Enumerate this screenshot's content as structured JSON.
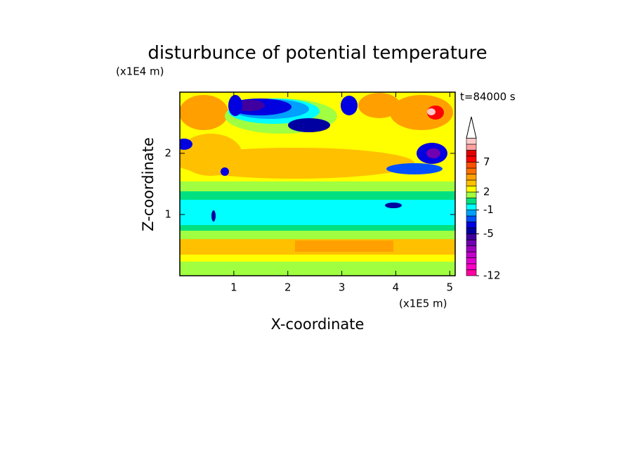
{
  "chart_data": {
    "type": "contour",
    "title": "disturbunce of potential temperature",
    "x_label": "X-coordinate",
    "y_label": "Z-coordinate",
    "x_unit": "(x1E5 m)",
    "y_unit": "(x1E4 m)",
    "annotation": "t=84000 s",
    "xlim": [
      0,
      5.1
    ],
    "ylim": [
      0,
      3
    ],
    "xticks": [
      1,
      2,
      3,
      4,
      5
    ],
    "yticks": [
      1,
      2
    ],
    "colorbar": {
      "levels": [
        -12,
        -11,
        -10,
        -9,
        -8,
        -7,
        -6,
        -5,
        -4,
        -3,
        -2,
        -1,
        0,
        1,
        2,
        3,
        4,
        5,
        6,
        7,
        8,
        9,
        10,
        11
      ],
      "colors": [
        "#ff00a0",
        "#ff00c8",
        "#e000d0",
        "#c000c8",
        "#a000c0",
        "#7000b0",
        "#4000a0",
        "#0000a0",
        "#0000e0",
        "#0050ff",
        "#00a0ff",
        "#00ffff",
        "#00e080",
        "#a0ff40",
        "#ffff00",
        "#ffc000",
        "#ffa000",
        "#ff7000",
        "#ff5000",
        "#ff0000",
        "#e00000",
        "#ffa0a0",
        "#ffc8c8"
      ],
      "ticks": [
        -12,
        -5,
        -1,
        2,
        7
      ]
    }
  }
}
